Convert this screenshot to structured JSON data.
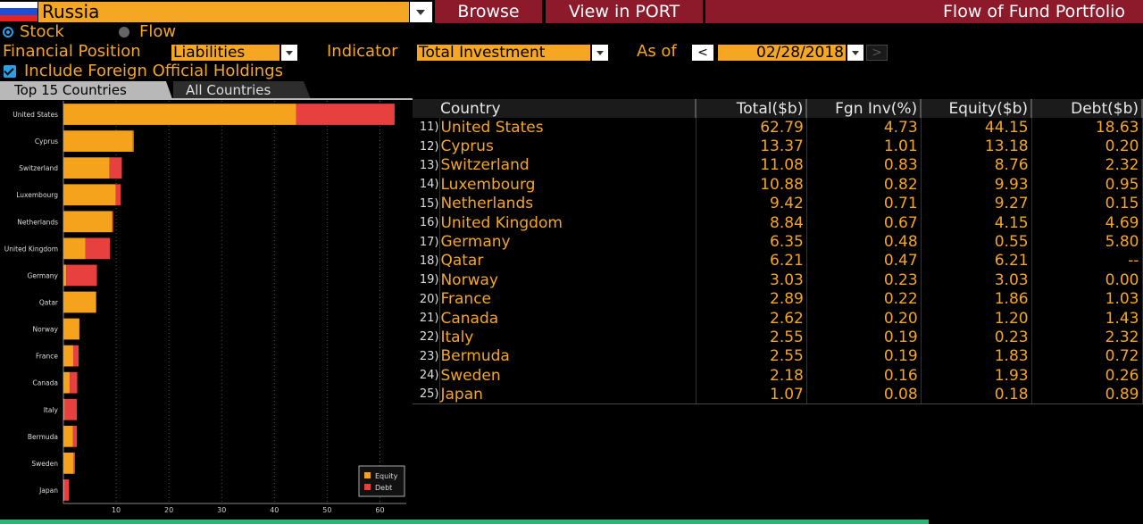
{
  "header": {
    "country": "Russia",
    "browse_label": "Browse",
    "port_label": "View in PORT",
    "title": "Flow of Fund Portfolio",
    "flag_colors": [
      "#ffffff",
      "#1c4fd8",
      "#e52421"
    ]
  },
  "mode": {
    "stock_label": "Stock",
    "flow_label": "Flow",
    "selected": "Stock"
  },
  "filters": {
    "financial_position_label": "Financial Position",
    "financial_position_value": "Liabilities",
    "indicator_label": "Indicator",
    "indicator_value": "Total Investment",
    "as_of_label": "As of",
    "date_value": "02/28/2018",
    "prev_glyph": "<",
    "next_glyph": ">"
  },
  "options": {
    "include_foreign_label": "Include Foreign Official Holdings",
    "include_foreign_checked": true
  },
  "tabs": [
    {
      "label": "Top 15 Countries",
      "active": true
    },
    {
      "label": "All Countries",
      "active": false
    }
  ],
  "colors": {
    "equity": "#f5a21d",
    "debt": "#e8403f",
    "accent": "#f5a623",
    "header_red": "#8c1a2b"
  },
  "chart_data": {
    "type": "bar",
    "orientation": "horizontal",
    "stacked": true,
    "categories": [
      "United States",
      "Cyprus",
      "Switzerland",
      "Luxembourg",
      "Netherlands",
      "United Kingdom",
      "Germany",
      "Qatar",
      "Norway",
      "France",
      "Canada",
      "Italy",
      "Bermuda",
      "Sweden",
      "Japan"
    ],
    "series": [
      {
        "name": "Equity",
        "values": [
          44.15,
          13.18,
          8.76,
          9.93,
          9.27,
          4.15,
          0.55,
          6.21,
          3.03,
          1.86,
          1.2,
          0.23,
          1.83,
          1.93,
          0.18
        ]
      },
      {
        "name": "Debt",
        "values": [
          18.63,
          0.2,
          2.32,
          0.95,
          0.15,
          4.69,
          5.8,
          0,
          0.0,
          1.03,
          1.43,
          2.32,
          0.72,
          0.26,
          0.89
        ]
      }
    ],
    "x_ticks": [
      10,
      20,
      30,
      40,
      50,
      60
    ],
    "xlim": [
      0,
      65
    ],
    "grid": true,
    "legend_position": "bottom-right"
  },
  "table": {
    "headers": [
      "Country",
      "Total($b)",
      "Fgn Inv(%)",
      "Equity($b)",
      "Debt($b)"
    ],
    "rows": [
      {
        "idx": "11)",
        "country": "United States",
        "total": "62.79",
        "fgn": "4.73",
        "equity": "44.15",
        "debt": "18.63"
      },
      {
        "idx": "12)",
        "country": "Cyprus",
        "total": "13.37",
        "fgn": "1.01",
        "equity": "13.18",
        "debt": "0.20"
      },
      {
        "idx": "13)",
        "country": "Switzerland",
        "total": "11.08",
        "fgn": "0.83",
        "equity": "8.76",
        "debt": "2.32"
      },
      {
        "idx": "14)",
        "country": "Luxembourg",
        "total": "10.88",
        "fgn": "0.82",
        "equity": "9.93",
        "debt": "0.95"
      },
      {
        "idx": "15)",
        "country": "Netherlands",
        "total": "9.42",
        "fgn": "0.71",
        "equity": "9.27",
        "debt": "0.15"
      },
      {
        "idx": "16)",
        "country": "United Kingdom",
        "total": "8.84",
        "fgn": "0.67",
        "equity": "4.15",
        "debt": "4.69"
      },
      {
        "idx": "17)",
        "country": "Germany",
        "total": "6.35",
        "fgn": "0.48",
        "equity": "0.55",
        "debt": "5.80"
      },
      {
        "idx": "18)",
        "country": "Qatar",
        "total": "6.21",
        "fgn": "0.47",
        "equity": "6.21",
        "debt": "--"
      },
      {
        "idx": "19)",
        "country": "Norway",
        "total": "3.03",
        "fgn": "0.23",
        "equity": "3.03",
        "debt": "0.00"
      },
      {
        "idx": "20)",
        "country": "France",
        "total": "2.89",
        "fgn": "0.22",
        "equity": "1.86",
        "debt": "1.03"
      },
      {
        "idx": "21)",
        "country": "Canada",
        "total": "2.62",
        "fgn": "0.20",
        "equity": "1.20",
        "debt": "1.43"
      },
      {
        "idx": "22)",
        "country": "Italy",
        "total": "2.55",
        "fgn": "0.19",
        "equity": "0.23",
        "debt": "2.32"
      },
      {
        "idx": "23)",
        "country": "Bermuda",
        "total": "2.55",
        "fgn": "0.19",
        "equity": "1.83",
        "debt": "0.72"
      },
      {
        "idx": "24)",
        "country": "Sweden",
        "total": "2.18",
        "fgn": "0.16",
        "equity": "1.93",
        "debt": "0.26"
      },
      {
        "idx": "25)",
        "country": "Japan",
        "total": "1.07",
        "fgn": "0.08",
        "equity": "0.18",
        "debt": "0.89"
      }
    ]
  }
}
